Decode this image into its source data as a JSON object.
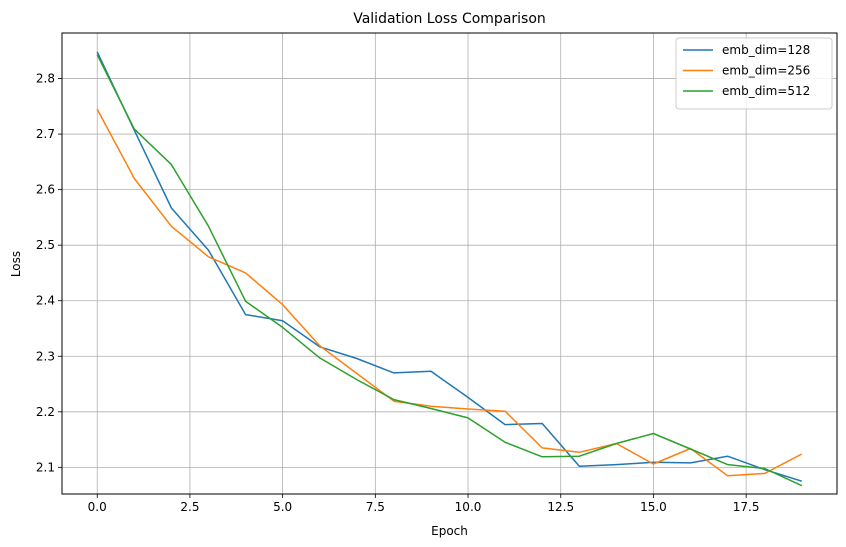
{
  "chart_data": {
    "type": "line",
    "title": "Validation Loss Comparison",
    "xlabel": "Epoch",
    "ylabel": "Loss",
    "xlim": [
      -0.95,
      19.95
    ],
    "ylim": [
      2.052,
      2.882
    ],
    "xticks": [
      0.0,
      2.5,
      5.0,
      7.5,
      10.0,
      12.5,
      15.0,
      17.5
    ],
    "xtick_labels": [
      "0.0",
      "2.5",
      "5.0",
      "7.5",
      "10.0",
      "12.5",
      "15.0",
      "17.5"
    ],
    "yticks": [
      2.1,
      2.2,
      2.3,
      2.4,
      2.5,
      2.6,
      2.7,
      2.8
    ],
    "ytick_labels": [
      "2.1",
      "2.2",
      "2.3",
      "2.4",
      "2.5",
      "2.6",
      "2.7",
      "2.8"
    ],
    "grid": true,
    "legend_position": "top-right",
    "x": [
      0,
      1,
      2,
      3,
      4,
      5,
      6,
      7,
      8,
      9,
      10,
      11,
      12,
      13,
      14,
      15,
      16,
      17,
      18,
      19
    ],
    "series": [
      {
        "name": "emb_dim=128",
        "color": "#1f77b4",
        "values": [
          2.848,
          2.707,
          2.567,
          2.491,
          2.375,
          2.364,
          2.317,
          2.296,
          2.27,
          2.273,
          2.226,
          2.177,
          2.179,
          2.102,
          2.105,
          2.109,
          2.108,
          2.12,
          2.096,
          2.075
        ]
      },
      {
        "name": "emb_dim=256",
        "color": "#ff7f0e",
        "values": [
          2.745,
          2.62,
          2.534,
          2.479,
          2.45,
          2.393,
          2.319,
          2.269,
          2.219,
          2.21,
          2.205,
          2.201,
          2.135,
          2.127,
          2.143,
          2.106,
          2.134,
          2.085,
          2.089,
          2.124
        ]
      },
      {
        "name": "emb_dim=512",
        "color": "#2ca02c",
        "values": [
          2.843,
          2.709,
          2.645,
          2.534,
          2.399,
          2.352,
          2.297,
          2.258,
          2.222,
          2.206,
          2.189,
          2.145,
          2.119,
          2.12,
          2.143,
          2.161,
          2.133,
          2.105,
          2.098,
          2.067
        ]
      }
    ]
  }
}
